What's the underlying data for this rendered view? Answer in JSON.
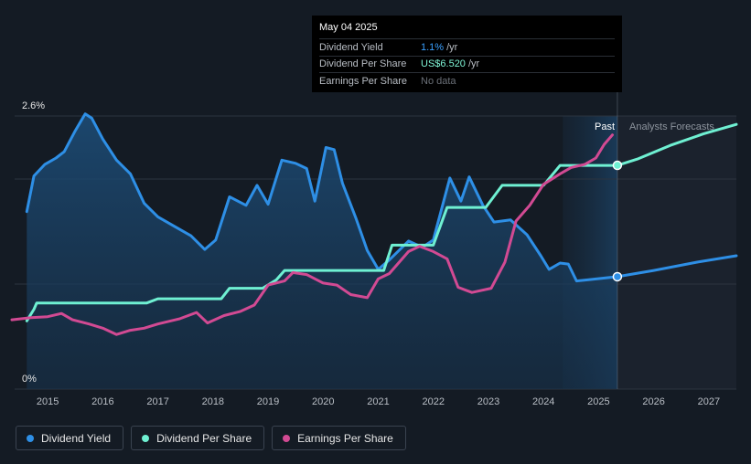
{
  "tooltip": {
    "date": "May 04 2025",
    "rows": [
      {
        "label": "Dividend Yield",
        "value": "1.1%",
        "unit": "/yr"
      },
      {
        "label": "Dividend Per Share",
        "value": "US$6.520",
        "unit": "/yr"
      },
      {
        "label": "Earnings Per Share",
        "value": "No data",
        "unit": ""
      }
    ]
  },
  "region_labels": {
    "past": "Past",
    "forecast": "Analysts Forecasts"
  },
  "legend": [
    {
      "label": "Dividend Yield",
      "color": "#2e8fe6"
    },
    {
      "label": "Dividend Per Share",
      "color": "#6ff0d2"
    },
    {
      "label": "Earnings Per Share",
      "color": "#d24a93"
    }
  ],
  "chart_data": {
    "type": "line",
    "xlim": [
      2014.4,
      2027.5
    ],
    "ylim": [
      0,
      2.6
    ],
    "ylabels": [
      "0%",
      "2.6%"
    ],
    "x_ticks": [
      2015,
      2016,
      2017,
      2018,
      2019,
      2020,
      2021,
      2022,
      2023,
      2024,
      2025,
      2026,
      2027
    ],
    "x_tick_labels": [
      "2015",
      "2016",
      "2017",
      "2018",
      "2019",
      "2020",
      "2021",
      "2022",
      "2023",
      "2024",
      "2025",
      "2026",
      "2027"
    ],
    "gridlines_y": [
      0,
      1.0,
      2.0,
      2.6
    ],
    "past_end": 2025.34,
    "highlight_start": 2024.35,
    "series": [
      {
        "name": "Dividend Yield",
        "color": "#2e8fe6",
        "fill": true,
        "points": [
          [
            2014.62,
            1.69
          ],
          [
            2014.75,
            2.03
          ],
          [
            2014.95,
            2.14
          ],
          [
            2015.15,
            2.2
          ],
          [
            2015.3,
            2.26
          ],
          [
            2015.5,
            2.46
          ],
          [
            2015.68,
            2.62
          ],
          [
            2015.8,
            2.58
          ],
          [
            2016.0,
            2.38
          ],
          [
            2016.25,
            2.18
          ],
          [
            2016.5,
            2.05
          ],
          [
            2016.75,
            1.77
          ],
          [
            2017.0,
            1.64
          ],
          [
            2017.3,
            1.55
          ],
          [
            2017.6,
            1.46
          ],
          [
            2017.85,
            1.33
          ],
          [
            2018.05,
            1.42
          ],
          [
            2018.3,
            1.83
          ],
          [
            2018.6,
            1.75
          ],
          [
            2018.8,
            1.94
          ],
          [
            2019.0,
            1.76
          ],
          [
            2019.25,
            2.18
          ],
          [
            2019.5,
            2.15
          ],
          [
            2019.7,
            2.1
          ],
          [
            2019.85,
            1.79
          ],
          [
            2020.05,
            2.3
          ],
          [
            2020.2,
            2.28
          ],
          [
            2020.35,
            1.96
          ],
          [
            2020.6,
            1.62
          ],
          [
            2020.8,
            1.32
          ],
          [
            2021.0,
            1.14
          ],
          [
            2021.2,
            1.23
          ],
          [
            2021.55,
            1.41
          ],
          [
            2021.8,
            1.35
          ],
          [
            2022.0,
            1.42
          ],
          [
            2022.3,
            2.01
          ],
          [
            2022.5,
            1.79
          ],
          [
            2022.65,
            2.02
          ],
          [
            2022.9,
            1.75
          ],
          [
            2023.1,
            1.59
          ],
          [
            2023.4,
            1.61
          ],
          [
            2023.7,
            1.47
          ],
          [
            2023.95,
            1.27
          ],
          [
            2024.1,
            1.14
          ],
          [
            2024.3,
            1.2
          ],
          [
            2024.45,
            1.19
          ],
          [
            2024.6,
            1.03
          ],
          [
            2024.8,
            1.04
          ],
          [
            2025.34,
            1.07
          ],
          [
            2026.0,
            1.13
          ],
          [
            2026.8,
            1.21
          ],
          [
            2027.5,
            1.27
          ]
        ]
      },
      {
        "name": "Dividend Per Share",
        "color": "#6ff0d2",
        "fill": false,
        "points": [
          [
            2014.62,
            0.65
          ],
          [
            2014.75,
            0.76
          ],
          [
            2014.8,
            0.82
          ],
          [
            2015.5,
            0.82
          ],
          [
            2016.5,
            0.82
          ],
          [
            2016.8,
            0.82
          ],
          [
            2017.0,
            0.86
          ],
          [
            2017.5,
            0.86
          ],
          [
            2018.15,
            0.86
          ],
          [
            2018.3,
            0.96
          ],
          [
            2018.9,
            0.96
          ],
          [
            2019.15,
            1.04
          ],
          [
            2019.3,
            1.13
          ],
          [
            2020.0,
            1.13
          ],
          [
            2021.0,
            1.13
          ],
          [
            2021.1,
            1.13
          ],
          [
            2021.25,
            1.37
          ],
          [
            2021.5,
            1.37
          ],
          [
            2022.0,
            1.37
          ],
          [
            2022.25,
            1.73
          ],
          [
            2022.5,
            1.73
          ],
          [
            2022.95,
            1.73
          ],
          [
            2023.25,
            1.94
          ],
          [
            2023.5,
            1.94
          ],
          [
            2024.0,
            1.94
          ],
          [
            2024.3,
            2.13
          ],
          [
            2024.6,
            2.13
          ],
          [
            2025.34,
            2.13
          ],
          [
            2025.7,
            2.19
          ],
          [
            2026.3,
            2.32
          ],
          [
            2026.9,
            2.43
          ],
          [
            2027.5,
            2.52
          ]
        ]
      },
      {
        "name": "Earnings Per Share",
        "color": "#d24a93",
        "fill": false,
        "points": [
          [
            2014.35,
            0.66
          ],
          [
            2014.7,
            0.68
          ],
          [
            2015.0,
            0.69
          ],
          [
            2015.25,
            0.72
          ],
          [
            2015.45,
            0.66
          ],
          [
            2015.75,
            0.62
          ],
          [
            2016.0,
            0.58
          ],
          [
            2016.25,
            0.52
          ],
          [
            2016.5,
            0.56
          ],
          [
            2016.75,
            0.58
          ],
          [
            2017.0,
            0.62
          ],
          [
            2017.4,
            0.67
          ],
          [
            2017.7,
            0.73
          ],
          [
            2017.9,
            0.63
          ],
          [
            2018.2,
            0.7
          ],
          [
            2018.5,
            0.74
          ],
          [
            2018.75,
            0.8
          ],
          [
            2019.0,
            0.99
          ],
          [
            2019.3,
            1.03
          ],
          [
            2019.45,
            1.11
          ],
          [
            2019.7,
            1.09
          ],
          [
            2020.0,
            1.01
          ],
          [
            2020.25,
            0.99
          ],
          [
            2020.5,
            0.9
          ],
          [
            2020.8,
            0.87
          ],
          [
            2021.0,
            1.05
          ],
          [
            2021.2,
            1.1
          ],
          [
            2021.55,
            1.31
          ],
          [
            2021.75,
            1.36
          ],
          [
            2022.0,
            1.31
          ],
          [
            2022.25,
            1.24
          ],
          [
            2022.45,
            0.97
          ],
          [
            2022.7,
            0.92
          ],
          [
            2023.05,
            0.96
          ],
          [
            2023.3,
            1.21
          ],
          [
            2023.5,
            1.6
          ],
          [
            2023.75,
            1.75
          ],
          [
            2024.0,
            1.95
          ],
          [
            2024.3,
            2.05
          ],
          [
            2024.5,
            2.11
          ],
          [
            2024.75,
            2.14
          ],
          [
            2024.95,
            2.2
          ],
          [
            2025.1,
            2.33
          ],
          [
            2025.25,
            2.42
          ]
        ]
      }
    ],
    "markers": [
      {
        "series": "Dividend Yield",
        "x": 2025.34,
        "y": 1.07
      },
      {
        "series": "Dividend Per Share",
        "x": 2025.34,
        "y": 2.13
      }
    ]
  }
}
